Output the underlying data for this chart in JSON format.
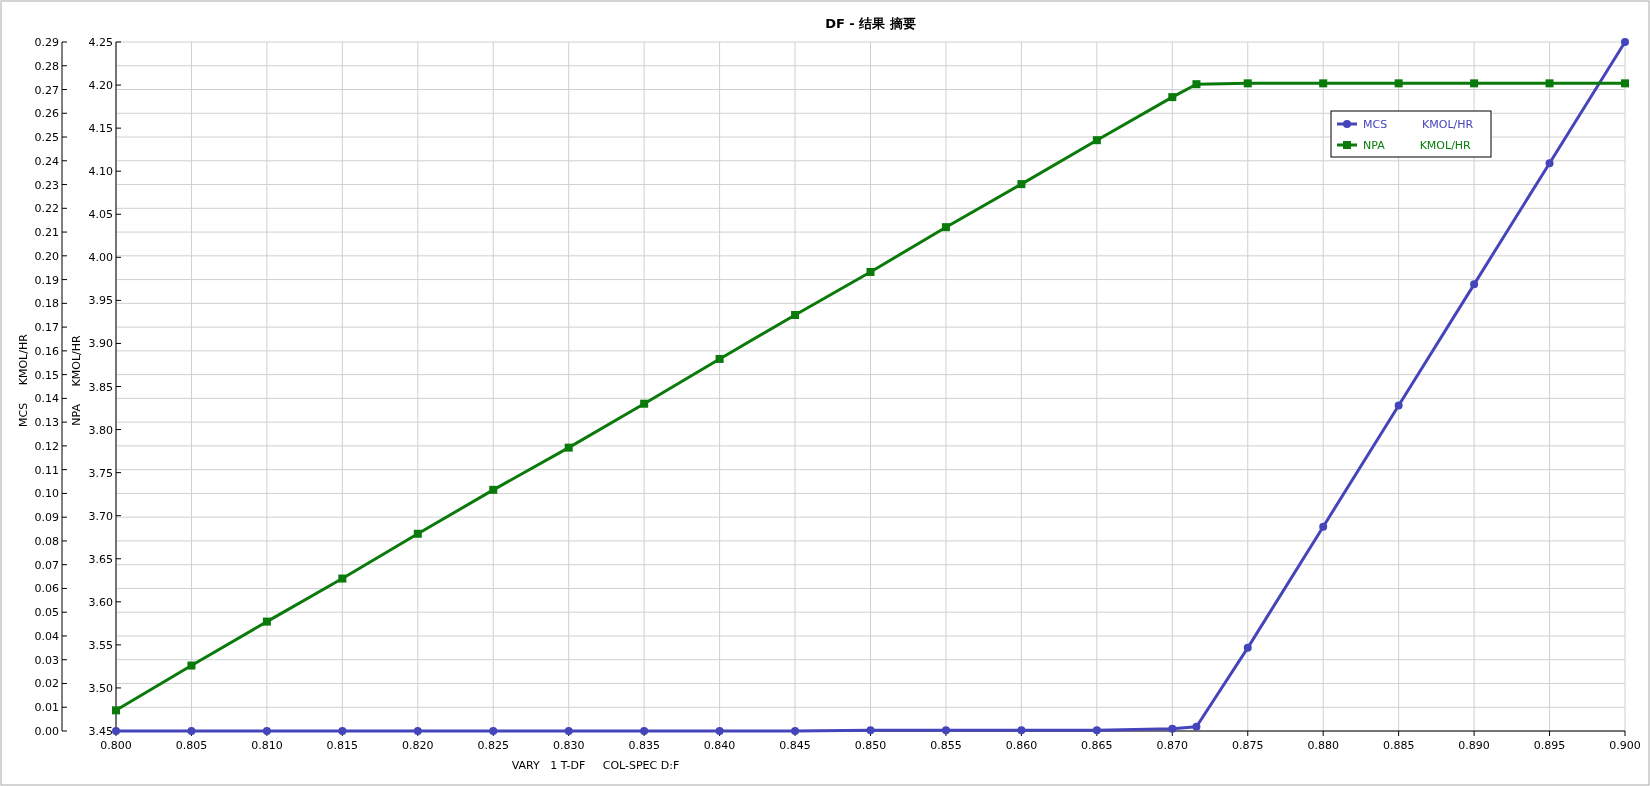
{
  "chart_data": {
    "type": "line",
    "title": "DF - 结果 摘要",
    "xlabel": "VARY   1 T-DF     COL-SPEC D:F",
    "ylabel": "MCS     KMOL/HR",
    "y2label": "NPA     KMOL/HR",
    "x": [
      0.8,
      0.805,
      0.81,
      0.815,
      0.82,
      0.825,
      0.83,
      0.835,
      0.84,
      0.845,
      0.85,
      0.855,
      0.86,
      0.865,
      0.87,
      0.8716,
      0.875,
      0.88,
      0.885,
      0.89,
      0.895,
      0.9
    ],
    "series": [
      {
        "name": "MCS          KMOL/HR",
        "color": "#4444bb",
        "marker": "circle",
        "values": [
          0,
          0,
          0,
          0,
          0,
          0,
          0,
          0,
          0,
          0,
          0.0003,
          0.0003,
          0.0003,
          0.0003,
          0.0009,
          0.0018,
          0.035,
          0.086,
          0.137,
          0.188,
          0.239,
          0.29
        ]
      },
      {
        "name": "NPA          KMOL/HR",
        "color": "#0a7a0a",
        "marker": "square",
        "axis": "y2",
        "values": [
          3.474,
          3.526,
          3.577,
          3.627,
          3.679,
          3.73,
          3.779,
          3.83,
          3.882,
          3.933,
          3.983,
          4.035,
          4.085,
          4.136,
          4.186,
          4.201,
          4.202,
          4.202,
          4.202,
          4.202,
          4.202,
          4.202
        ]
      }
    ],
    "xlim": [
      0.8,
      0.9
    ],
    "xticks": [
      {
        "value": 0.8,
        "label": "0.800"
      },
      {
        "value": 0.805,
        "label": "0.805"
      },
      {
        "value": 0.81,
        "label": "0.810"
      },
      {
        "value": 0.815,
        "label": "0.815"
      },
      {
        "value": 0.82,
        "label": "0.820"
      },
      {
        "value": 0.825,
        "label": "0.825"
      },
      {
        "value": 0.83,
        "label": "0.830"
      },
      {
        "value": 0.835,
        "label": "0.835"
      },
      {
        "value": 0.84,
        "label": "0.840"
      },
      {
        "value": 0.845,
        "label": "0.845"
      },
      {
        "value": 0.85,
        "label": "0.850"
      },
      {
        "value": 0.855,
        "label": "0.855"
      },
      {
        "value": 0.86,
        "label": "0.860"
      },
      {
        "value": 0.865,
        "label": "0.865"
      },
      {
        "value": 0.87,
        "label": "0.870"
      },
      {
        "value": 0.875,
        "label": "0.875"
      },
      {
        "value": 0.88,
        "label": "0.880"
      },
      {
        "value": 0.885,
        "label": "0.885"
      },
      {
        "value": 0.89,
        "label": "0.890"
      },
      {
        "value": 0.895,
        "label": "0.895"
      },
      {
        "value": 0.9,
        "label": "0.900"
      }
    ],
    "ylim": [
      0,
      0.29
    ],
    "yticks": [
      {
        "value": 0,
        "label": "0.00"
      },
      {
        "value": 0.01,
        "label": "0.01"
      },
      {
        "value": 0.02,
        "label": "0.02"
      },
      {
        "value": 0.03,
        "label": "0.03"
      },
      {
        "value": 0.04,
        "label": "0.04"
      },
      {
        "value": 0.05,
        "label": "0.05"
      },
      {
        "value": 0.06,
        "label": "0.06"
      },
      {
        "value": 0.07,
        "label": "0.07"
      },
      {
        "value": 0.08,
        "label": "0.08"
      },
      {
        "value": 0.09,
        "label": "0.09"
      },
      {
        "value": 0.1,
        "label": "0.10"
      },
      {
        "value": 0.11,
        "label": "0.11"
      },
      {
        "value": 0.12,
        "label": "0.12"
      },
      {
        "value": 0.13,
        "label": "0.13"
      },
      {
        "value": 0.14,
        "label": "0.14"
      },
      {
        "value": 0.15,
        "label": "0.15"
      },
      {
        "value": 0.16,
        "label": "0.16"
      },
      {
        "value": 0.17,
        "label": "0.17"
      },
      {
        "value": 0.18,
        "label": "0.18"
      },
      {
        "value": 0.19,
        "label": "0.19"
      },
      {
        "value": 0.2,
        "label": "0.20"
      },
      {
        "value": 0.21,
        "label": "0.21"
      },
      {
        "value": 0.22,
        "label": "0.22"
      },
      {
        "value": 0.23,
        "label": "0.23"
      },
      {
        "value": 0.24,
        "label": "0.24"
      },
      {
        "value": 0.25,
        "label": "0.25"
      },
      {
        "value": 0.26,
        "label": "0.26"
      },
      {
        "value": 0.27,
        "label": "0.27"
      },
      {
        "value": 0.28,
        "label": "0.28"
      },
      {
        "value": 0.29,
        "label": "0.29"
      }
    ],
    "y2lim": [
      3.45,
      4.25
    ],
    "y2ticks": [
      {
        "value": 3.45,
        "label": "3.45"
      },
      {
        "value": 3.5,
        "label": "3.50"
      },
      {
        "value": 3.55,
        "label": "3.55"
      },
      {
        "value": 3.6,
        "label": "3.60"
      },
      {
        "value": 3.65,
        "label": "3.65"
      },
      {
        "value": 3.7,
        "label": "3.70"
      },
      {
        "value": 3.75,
        "label": "3.75"
      },
      {
        "value": 3.8,
        "label": "3.80"
      },
      {
        "value": 3.85,
        "label": "3.85"
      },
      {
        "value": 3.9,
        "label": "3.90"
      },
      {
        "value": 3.95,
        "label": "3.95"
      },
      {
        "value": 4.0,
        "label": "4.00"
      },
      {
        "value": 4.05,
        "label": "4.05"
      },
      {
        "value": 4.1,
        "label": "4.10"
      },
      {
        "value": 4.15,
        "label": "4.15"
      },
      {
        "value": 4.2,
        "label": "4.20"
      },
      {
        "value": 4.25,
        "label": "4.25"
      }
    ],
    "grid": true,
    "legend": "top right",
    "line_style": "solid"
  }
}
